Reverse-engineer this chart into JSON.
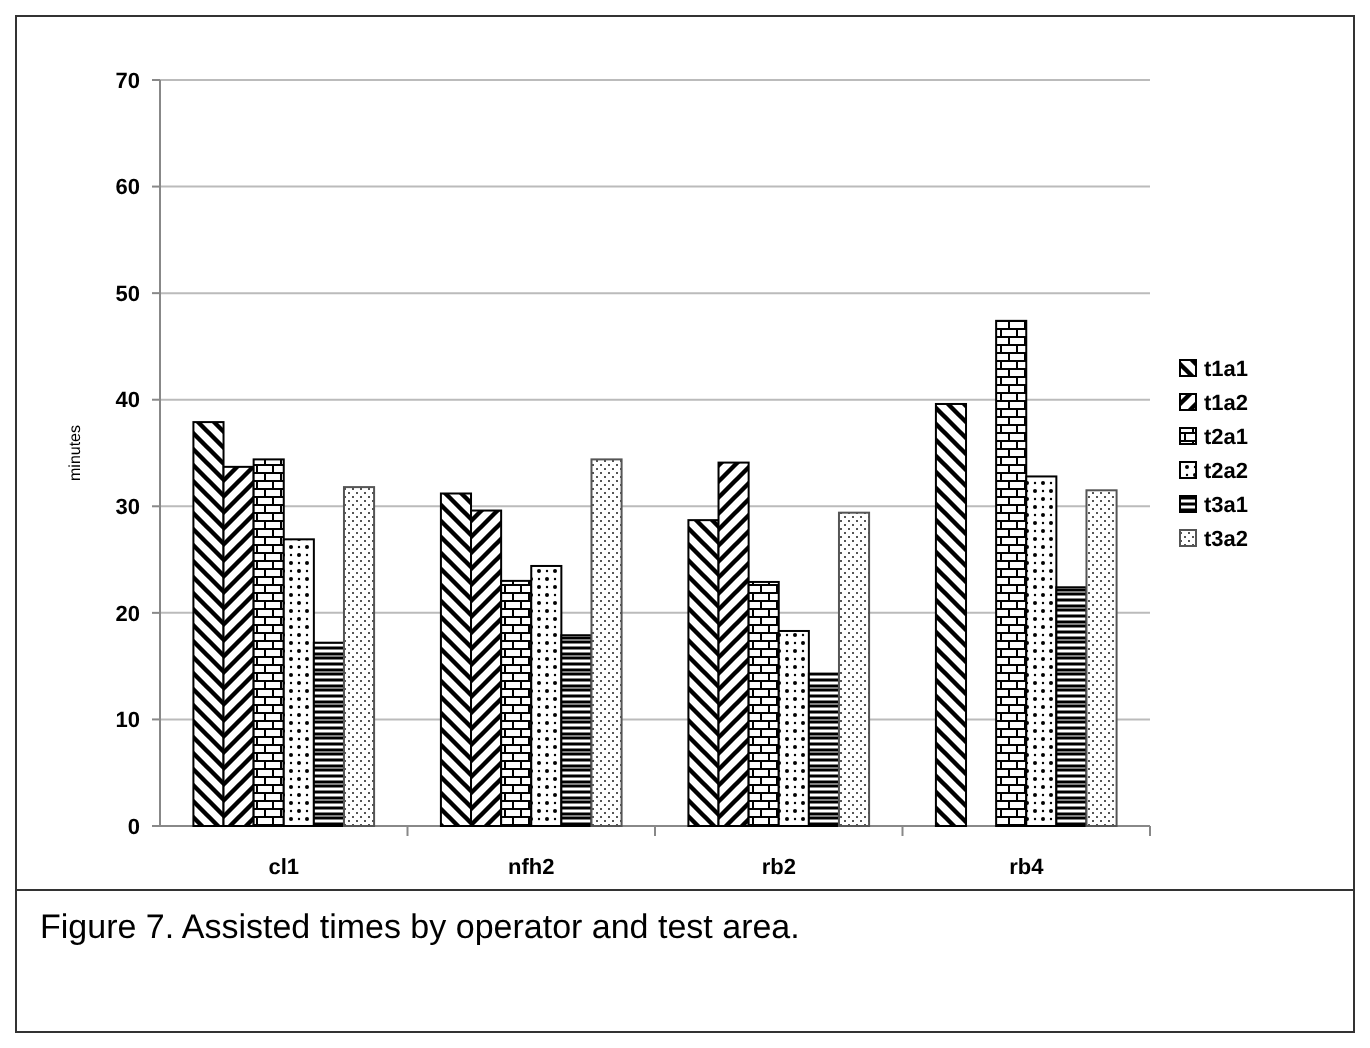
{
  "chart_data": {
    "type": "bar",
    "ylabel": "minutes",
    "categories": [
      "cl1",
      "nfh2",
      "rb2",
      "rb4"
    ],
    "series": [
      {
        "name": "t1a1",
        "color": "#000000",
        "values": [
          37.9,
          31.2,
          28.7,
          39.6
        ]
      },
      {
        "name": "t1a2",
        "color": "#000000",
        "values": [
          33.7,
          29.6,
          34.1,
          null
        ]
      },
      {
        "name": "t2a1",
        "color": "#000000",
        "values": [
          34.4,
          23.0,
          22.9,
          47.4
        ]
      },
      {
        "name": "t2a2",
        "color": "#000000",
        "values": [
          26.9,
          24.4,
          18.3,
          32.8
        ]
      },
      {
        "name": "t3a1",
        "color": "#000000",
        "values": [
          17.2,
          17.9,
          14.3,
          22.4
        ]
      },
      {
        "name": "t3a2",
        "color": "#555555",
        "values": [
          31.8,
          34.4,
          29.4,
          31.5
        ]
      }
    ],
    "ylim": [
      0,
      70
    ],
    "yticks": [
      0,
      10,
      20,
      30,
      40,
      50,
      60,
      70
    ],
    "grid": "y",
    "legend": "right",
    "annotations": [
      "Figure 7. Assisted times by operator and test area."
    ]
  }
}
